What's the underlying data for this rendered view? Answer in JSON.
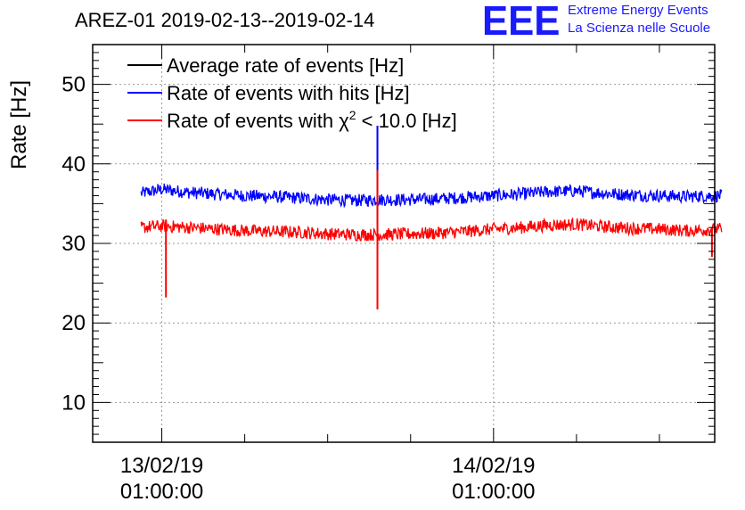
{
  "header": {
    "title": "AREZ-01 2019-02-13--2019-02-14",
    "logo_text": "EEE",
    "brand_line1": "Extreme Energy Events",
    "brand_line2": "La Scienza nelle Scuole"
  },
  "chart_data": {
    "type": "line",
    "title": "AREZ-01 2019-02-13--2019-02-14",
    "xlabel": "",
    "ylabel": "Rate [Hz]",
    "ylim": [
      5,
      55
    ],
    "yticks": [
      10,
      20,
      30,
      40,
      50
    ],
    "ytick_labels": [
      "10",
      "20",
      "30",
      "40",
      "50"
    ],
    "xlim_hours": [
      -5.0,
      40.0
    ],
    "xticks_hours": [
      0,
      24
    ],
    "xtick_labels": [
      [
        "13/02/19",
        "01:00:00"
      ],
      [
        "14/02/19",
        "01:00:00"
      ]
    ],
    "grid": true,
    "legend_position": "top-left",
    "colors": {
      "average": "#000000",
      "hits": "#0000ff",
      "chi2": "#ff0000"
    },
    "series": [
      {
        "name": "Average rate of events [Hz]",
        "color": "#000000",
        "x_hours": [],
        "values": []
      },
      {
        "name": "Rate of events with hits [Hz]",
        "color": "#0000ff",
        "x_hours": [
          -1.5,
          0,
          2,
          4,
          6,
          8,
          10,
          12,
          14,
          16,
          18,
          20,
          22,
          24,
          26,
          28,
          30,
          32,
          34,
          36,
          38,
          40.5
        ],
        "values": [
          36.3,
          36.8,
          36.4,
          36.2,
          36.0,
          35.9,
          35.7,
          35.5,
          35.4,
          35.5,
          35.5,
          35.6,
          35.8,
          36.0,
          36.2,
          36.5,
          36.6,
          36.3,
          36.1,
          36.0,
          35.9,
          36.0
        ],
        "noise": 0.8,
        "spikes": [
          {
            "x_hours": 15.6,
            "low": 32.5,
            "high": 44.8
          }
        ]
      },
      {
        "name": "Rate of events with χ2 < 10.0 [Hz]",
        "color": "#ff0000",
        "x_hours": [
          -1.5,
          0,
          2,
          4,
          6,
          8,
          10,
          12,
          14,
          16,
          18,
          20,
          22,
          24,
          26,
          28,
          30,
          32,
          34,
          36,
          38,
          40.5
        ],
        "values": [
          32.0,
          32.2,
          32.0,
          31.8,
          31.6,
          31.5,
          31.4,
          31.2,
          31.1,
          31.1,
          31.2,
          31.3,
          31.5,
          31.8,
          32.0,
          32.3,
          32.4,
          32.1,
          31.9,
          31.8,
          31.6,
          31.8
        ],
        "noise": 0.8,
        "spikes": [
          {
            "x_hours": 0.3,
            "low": 23.2,
            "high": 33.0
          },
          {
            "x_hours": 15.6,
            "low": 21.7,
            "high": 39.2
          },
          {
            "x_hours": 39.8,
            "low": 28.3,
            "high": 32.0
          }
        ]
      }
    ],
    "legend_labels": {
      "average": "Average rate of events [Hz]",
      "hits": "Rate of events with hits [Hz]",
      "chi2_prefix": "Rate of events with χ",
      "chi2_sup": "2",
      "chi2_suffix": " < 10.0 [Hz]"
    }
  }
}
